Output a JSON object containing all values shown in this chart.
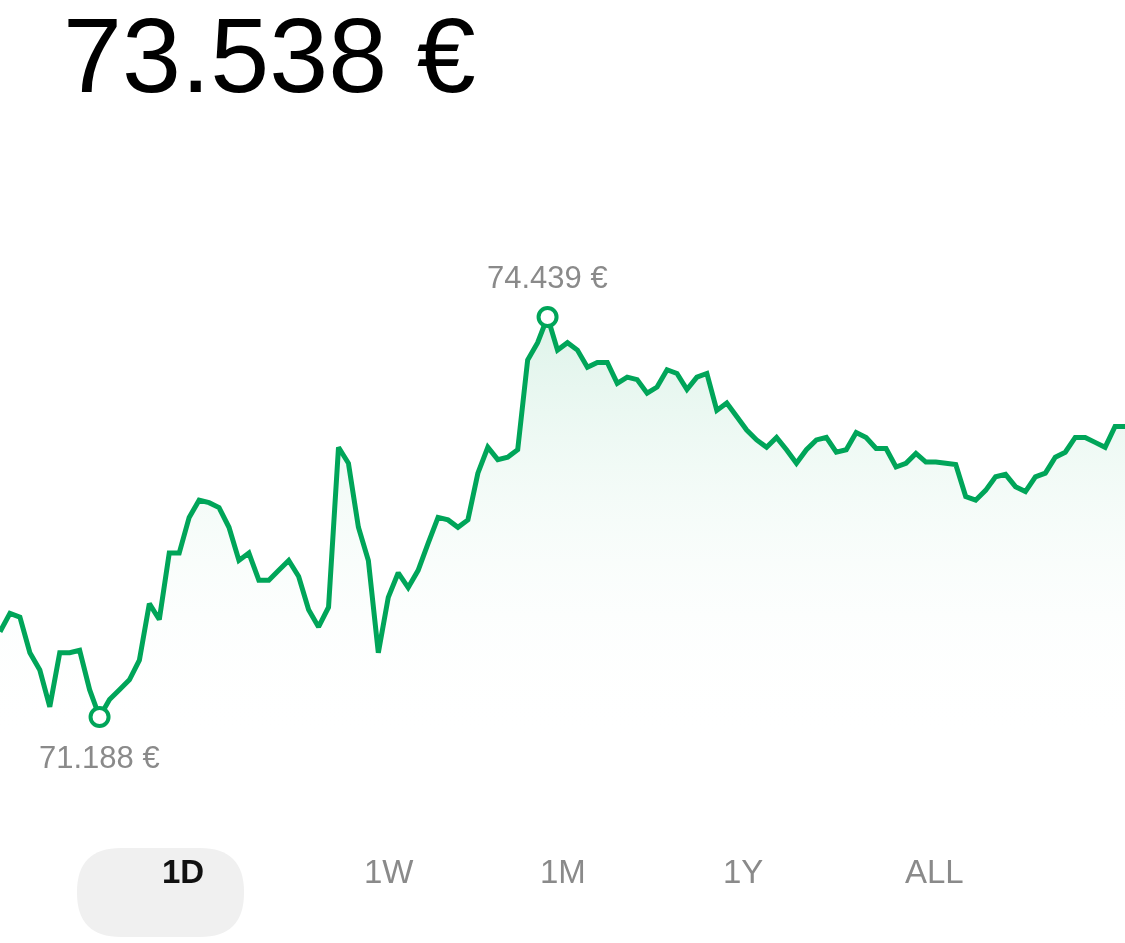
{
  "chart_data": {
    "type": "area",
    "title": "73.538 €",
    "categories": [
      null,
      null,
      null,
      null,
      null,
      null,
      null,
      null,
      null,
      null,
      null,
      null,
      null,
      null,
      null,
      null,
      null,
      null,
      null,
      null,
      null,
      null,
      null,
      null,
      null,
      null,
      null,
      null,
      null,
      null,
      null,
      null,
      null,
      null,
      null,
      null,
      null,
      null,
      null,
      null,
      null,
      null,
      null,
      null,
      null,
      null,
      null,
      null,
      null,
      null,
      null,
      null,
      null,
      null,
      null,
      null,
      null,
      null,
      null,
      null,
      null,
      null,
      null,
      null,
      null,
      null,
      null,
      null,
      null,
      null,
      null,
      null,
      null,
      null,
      null,
      null,
      null,
      null,
      null,
      null,
      null,
      null,
      null,
      null,
      null,
      null,
      null,
      null,
      null,
      null,
      null,
      null,
      null,
      null,
      null,
      null,
      null,
      null,
      null,
      null,
      null,
      null,
      null,
      null,
      null,
      null,
      null,
      null,
      null,
      null,
      null,
      null,
      null,
      null
    ],
    "series": [
      {
        "color": "#00a559",
        "values": [
          71.88,
          72.03,
          72.0,
          71.71,
          71.57,
          71.27,
          71.71,
          71.71,
          71.73,
          71.41,
          71.188,
          71.33,
          71.41,
          71.49,
          71.65,
          72.11,
          71.98,
          72.52,
          72.52,
          72.81,
          72.95,
          72.93,
          72.89,
          72.73,
          72.46,
          72.52,
          72.3,
          72.3,
          72.38,
          72.46,
          72.33,
          72.06,
          71.92,
          72.08,
          73.38,
          73.25,
          72.73,
          72.46,
          71.71,
          72.16,
          72.36,
          72.24,
          72.38,
          72.6,
          72.81,
          72.79,
          72.73,
          72.79,
          73.17,
          73.38,
          73.28,
          73.3,
          73.36,
          74.09,
          74.23,
          74.439,
          74.17,
          74.23,
          74.17,
          74.03,
          74.07,
          74.07,
          73.9,
          73.95,
          73.93,
          73.82,
          73.87,
          74.01,
          73.98,
          73.85,
          73.95,
          73.98,
          73.68,
          73.74,
          73.63,
          73.52,
          73.44,
          73.38,
          73.46,
          73.36,
          73.25,
          73.36,
          73.44,
          73.46,
          73.34,
          73.36,
          73.5,
          73.46,
          73.37,
          73.37,
          73.22,
          73.25,
          73.33,
          73.26,
          73.26,
          73.25,
          73.24,
          72.98,
          72.95,
          73.03,
          73.14,
          73.16,
          73.06,
          73.02,
          73.14,
          73.17,
          73.3,
          73.34,
          73.46,
          73.46,
          73.42,
          73.38,
          73.55,
          73.55
        ],
        "value_labels": [
          null,
          null,
          null,
          null,
          null,
          null,
          null,
          null,
          null,
          null,
          "71.188 €",
          null,
          null,
          null,
          null,
          null,
          null,
          null,
          null,
          null,
          null,
          null,
          null,
          null,
          null,
          null,
          null,
          null,
          null,
          null,
          null,
          null,
          null,
          null,
          null,
          null,
          null,
          null,
          null,
          null,
          null,
          null,
          null,
          null,
          null,
          null,
          null,
          null,
          null,
          null,
          null,
          null,
          null,
          null,
          null,
          "74.439 €",
          null,
          null,
          null,
          null,
          null,
          null,
          null,
          null,
          null,
          null,
          null,
          null,
          null,
          null,
          null,
          null,
          null,
          null,
          null,
          null,
          null,
          null,
          null,
          null,
          null,
          null,
          null,
          null,
          null,
          null,
          null,
          null,
          null,
          null,
          null,
          null,
          null,
          null,
          null,
          null,
          null,
          null,
          null,
          null,
          null,
          null,
          null,
          null,
          null,
          null,
          null,
          null,
          null,
          null,
          null,
          null,
          null,
          null
        ]
      }
    ],
    "tick_labels": false,
    "line_style": "solid",
    "marker": "none",
    "annotations": [
      "1D",
      "1W",
      "1M",
      "1Y",
      "ALL"
    ]
  }
}
